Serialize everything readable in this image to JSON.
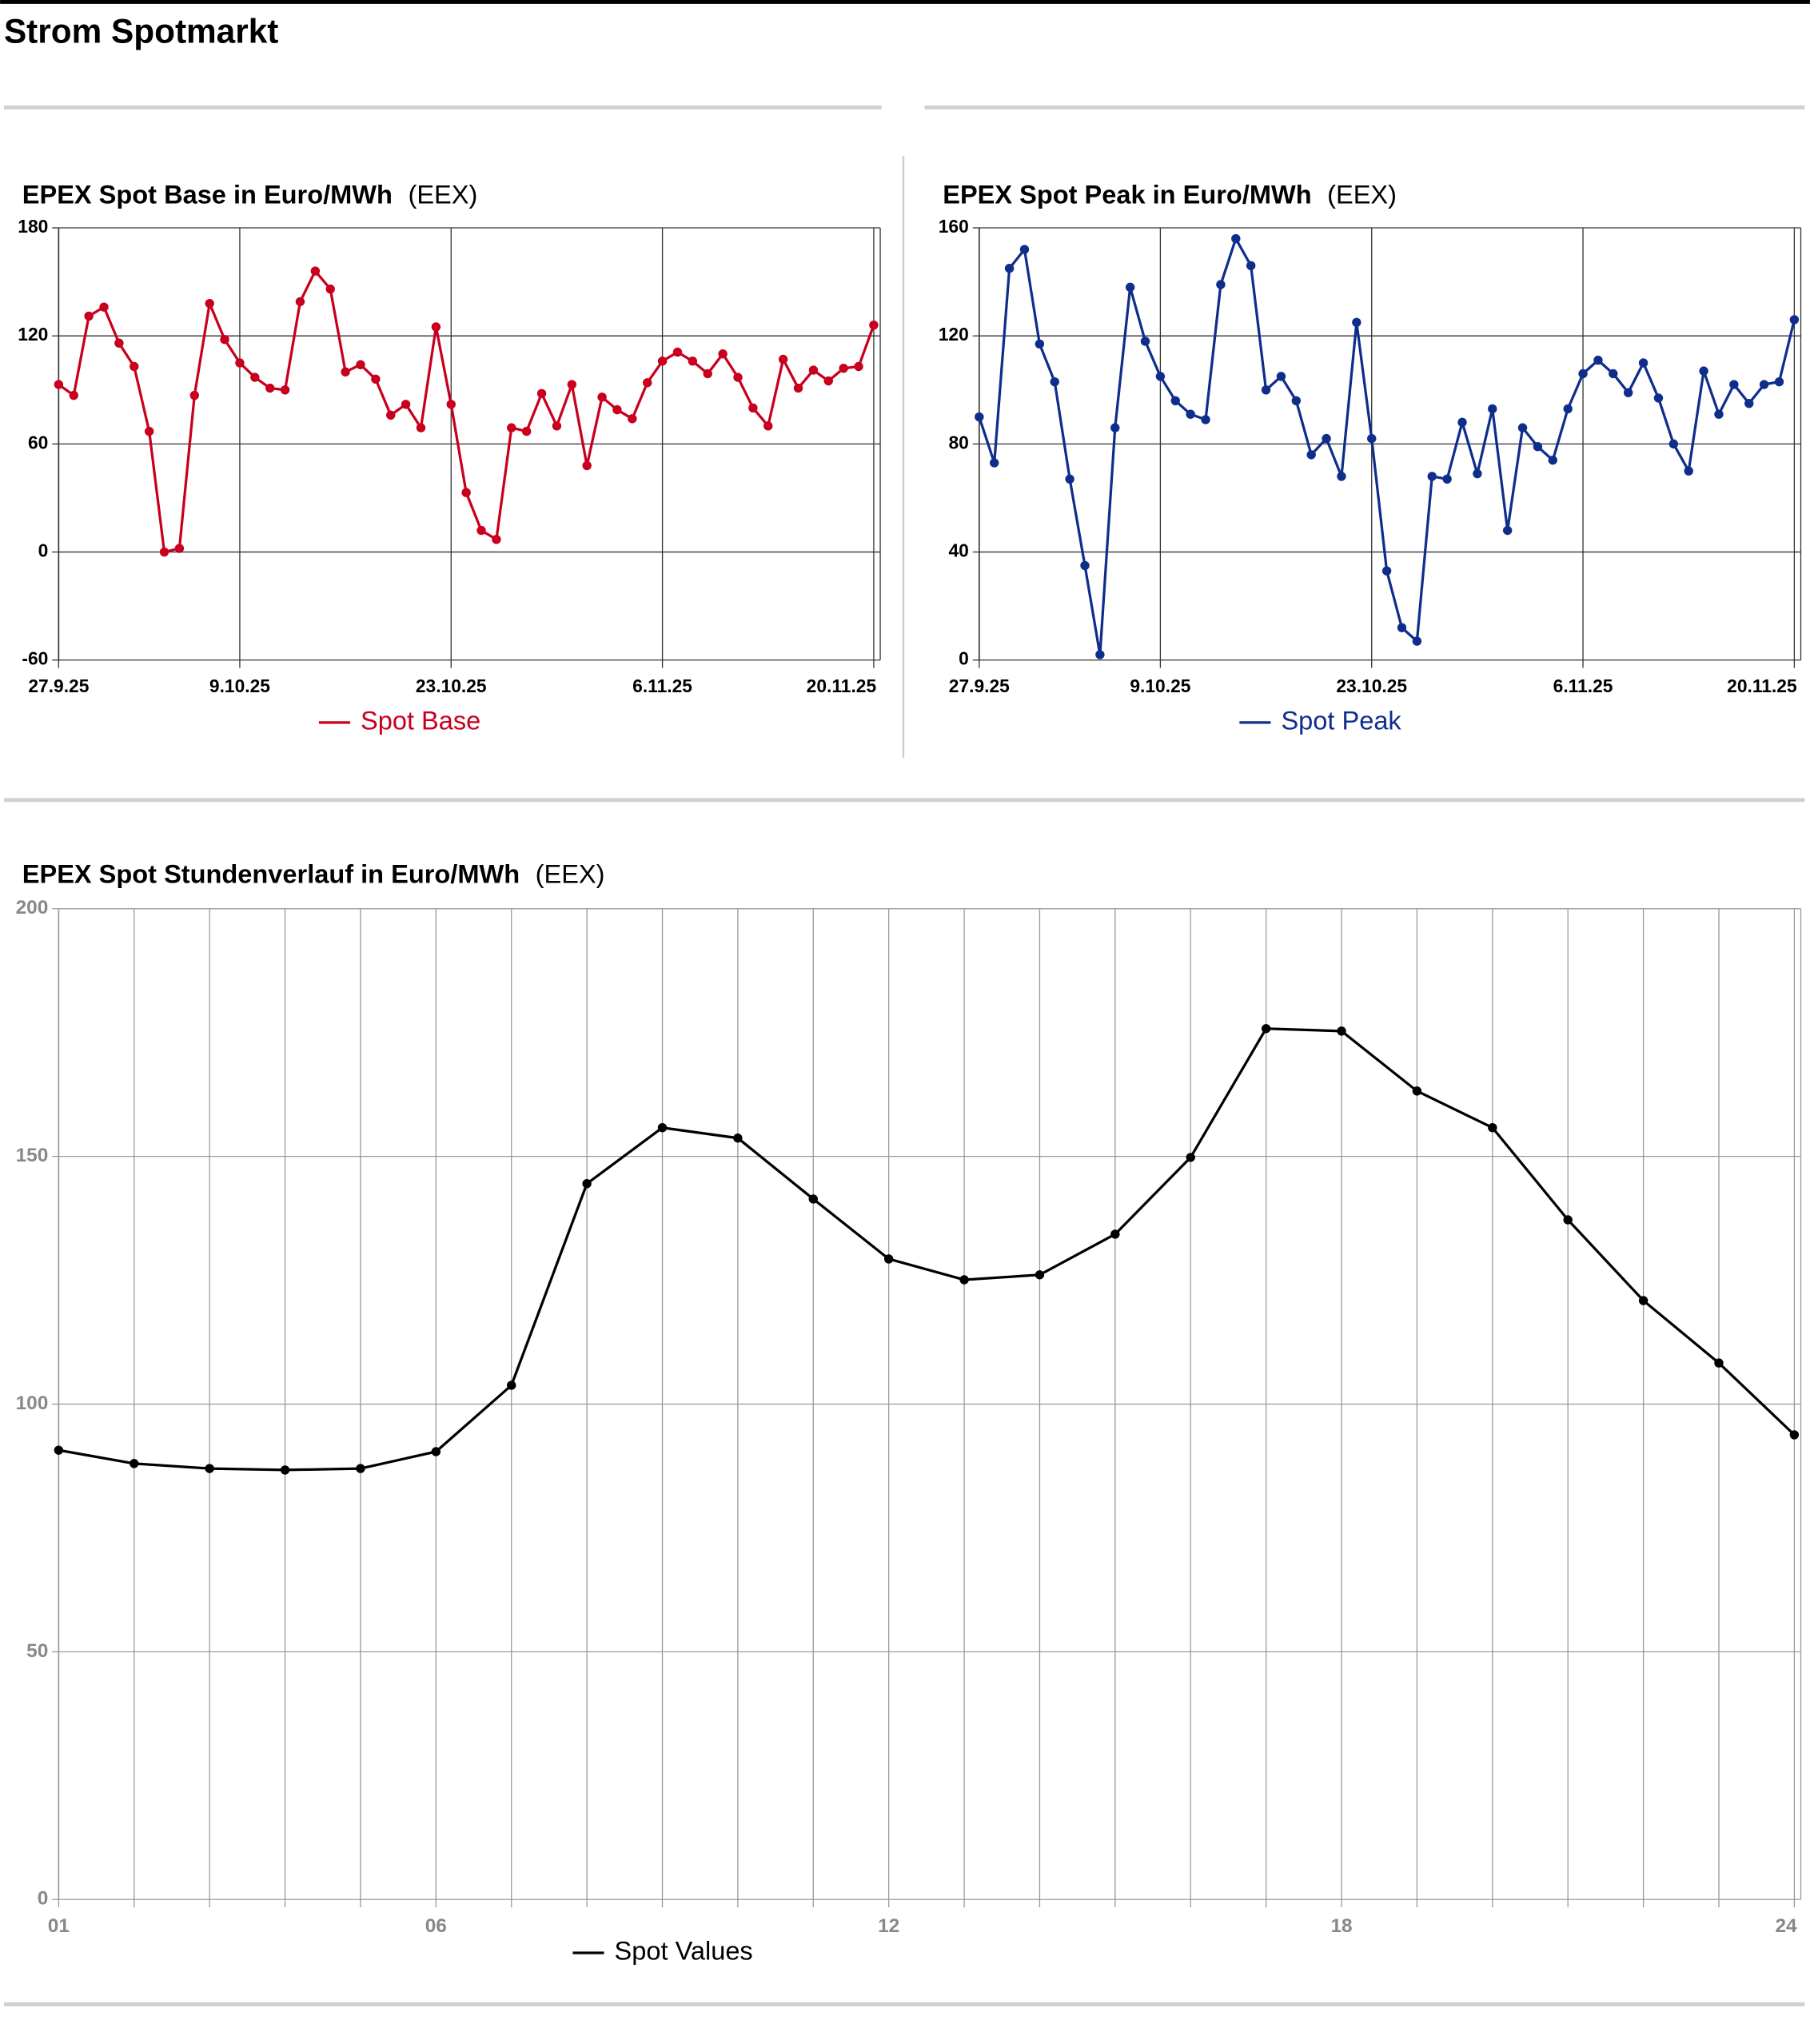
{
  "page_title": "Strom Spotmarkt",
  "chart_data": [
    {
      "type": "line",
      "title": "EPEX Spot Base in Euro/MWh",
      "source": "(EEX)",
      "categories": [
        "27.9.25",
        null,
        null,
        null,
        null,
        null,
        null,
        null,
        null,
        null,
        null,
        null,
        "9.10.25",
        null,
        null,
        null,
        null,
        null,
        null,
        null,
        null,
        null,
        null,
        null,
        null,
        null,
        "23.10.25",
        null,
        null,
        null,
        null,
        null,
        null,
        null,
        null,
        null,
        null,
        null,
        null,
        null,
        "6.11.25",
        null,
        null,
        null,
        null,
        null,
        null,
        null,
        null,
        null,
        null,
        null,
        null,
        null,
        "20.11.25"
      ],
      "series": [
        {
          "name": "Spot Base",
          "color": "#c8001e",
          "values": [
            93,
            87,
            131,
            136,
            116,
            103,
            67,
            0,
            2,
            87,
            138,
            118,
            105,
            97,
            91,
            90,
            139,
            156,
            146,
            100,
            104,
            96,
            76,
            82,
            69,
            125,
            82,
            33,
            12,
            7,
            69,
            67,
            88,
            70,
            93,
            48,
            86,
            79,
            74,
            94,
            106,
            111,
            106,
            99,
            110,
            97,
            80,
            70,
            107,
            91,
            101,
            95,
            102,
            103,
            126
          ]
        }
      ],
      "ylim": [
        -60,
        180
      ],
      "yticks": [
        -60,
        0,
        60,
        120,
        180
      ],
      "grid": true,
      "xgrid": "labeled"
    },
    {
      "type": "line",
      "title": "EPEX Spot Peak in Euro/MWh",
      "source": "(EEX)",
      "categories": [
        "27.9.25",
        null,
        null,
        null,
        null,
        null,
        null,
        null,
        null,
        null,
        null,
        null,
        "9.10.25",
        null,
        null,
        null,
        null,
        null,
        null,
        null,
        null,
        null,
        null,
        null,
        null,
        null,
        "23.10.25",
        null,
        null,
        null,
        null,
        null,
        null,
        null,
        null,
        null,
        null,
        null,
        null,
        null,
        "6.11.25",
        null,
        null,
        null,
        null,
        null,
        null,
        null,
        null,
        null,
        null,
        null,
        null,
        null,
        "20.11.25"
      ],
      "series": [
        {
          "name": "Spot Peak",
          "color": "#0f2e8c",
          "values": [
            90,
            73,
            145,
            152,
            117,
            103,
            67,
            35,
            2,
            86,
            138,
            118,
            105,
            96,
            91,
            89,
            139,
            156,
            146,
            100,
            105,
            96,
            76,
            82,
            68,
            125,
            82,
            33,
            12,
            7,
            68,
            67,
            88,
            69,
            93,
            48,
            86,
            79,
            74,
            93,
            106,
            111,
            106,
            99,
            110,
            97,
            80,
            70,
            107,
            91,
            102,
            95,
            102,
            103,
            126
          ]
        }
      ],
      "ylim": [
        0,
        160
      ],
      "yticks": [
        0,
        40,
        80,
        120,
        160
      ],
      "grid": true,
      "xgrid": "labeled"
    },
    {
      "type": "line",
      "title": "EPEX Spot Stundenverlauf in Euro/MWh",
      "source": "(EEX)",
      "categories": [
        "01",
        null,
        null,
        null,
        null,
        "06",
        null,
        null,
        null,
        null,
        null,
        "12",
        null,
        null,
        null,
        null,
        null,
        "18",
        null,
        null,
        null,
        null,
        null,
        "24"
      ],
      "series": [
        {
          "name": "Spot Values",
          "color": "#000000",
          "values": [
            90.7,
            88.0,
            87.0,
            86.7,
            87.0,
            90.4,
            103.8,
            144.5,
            155.8,
            153.7,
            141.4,
            129.3,
            125.1,
            126.1,
            134.3,
            149.8,
            175.8,
            175.3,
            163.2,
            155.8,
            137.2,
            120.9,
            108.3,
            93.8
          ]
        }
      ],
      "ylim": [
        0,
        200
      ],
      "yticks": [
        0,
        50,
        100,
        150,
        200
      ],
      "grid": true,
      "xgrid": "all"
    }
  ]
}
